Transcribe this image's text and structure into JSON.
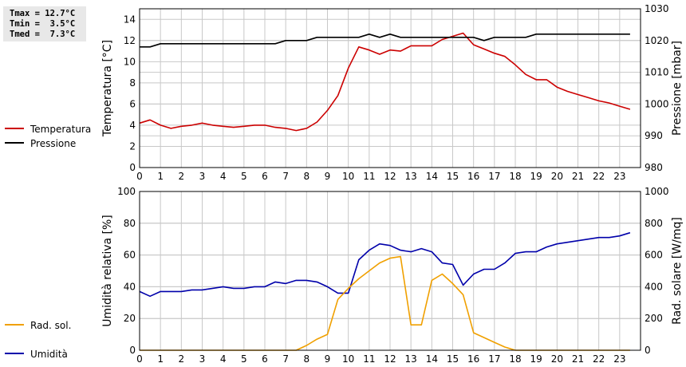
{
  "stats": {
    "tmax": "Tmax = 12.7°C",
    "tmin": "Tmin =  3.5°C",
    "tmed": "Tmed =  7.3°C"
  },
  "colors": {
    "temperature": "#cc0000",
    "pressure": "#000000",
    "humidity": "#0000aa",
    "solar": "#f0a000",
    "grid": "#c8c8c8"
  },
  "chart_data": [
    {
      "type": "line",
      "x_ticks": [
        "0",
        "1",
        "2",
        "3",
        "4",
        "5",
        "6",
        "7",
        "8",
        "9",
        "10",
        "11",
        "12",
        "13",
        "14",
        "15",
        "16",
        "17",
        "18",
        "19",
        "20",
        "21",
        "22",
        "23"
      ],
      "xlim": [
        0,
        24
      ],
      "ylabel_left": "Temperatura [°C]",
      "ylim_left": [
        0,
        15
      ],
      "yticks_left": [
        "0",
        "2",
        "4",
        "6",
        "8",
        "10",
        "12",
        "14"
      ],
      "ylabel_right": "Pressione [mbar]",
      "ylim_right": [
        980,
        1030
      ],
      "yticks_right": [
        "980",
        "990",
        "1000",
        "1010",
        "1020",
        "1030"
      ],
      "grid": true,
      "legend_position": "left",
      "series": [
        {
          "name": "Temperatura",
          "axis": "left",
          "x": [
            0,
            0.5,
            1,
            1.5,
            2,
            2.5,
            3,
            3.5,
            4,
            4.5,
            5,
            5.5,
            6,
            6.5,
            7,
            7.5,
            8,
            8.5,
            9,
            9.5,
            10,
            10.5,
            11,
            11.5,
            12,
            12.5,
            13,
            13.5,
            14,
            14.5,
            15,
            15.5,
            16,
            16.5,
            17,
            17.5,
            18,
            18.5,
            19,
            19.5,
            20,
            20.5,
            21,
            21.5,
            22,
            22.5,
            23,
            23.5
          ],
          "values": [
            4.2,
            4.5,
            4.0,
            3.7,
            3.9,
            4.0,
            4.2,
            4.0,
            3.9,
            3.8,
            3.9,
            4.0,
            4.0,
            3.8,
            3.7,
            3.5,
            3.7,
            4.3,
            5.4,
            6.8,
            9.4,
            11.4,
            11.1,
            10.7,
            11.1,
            11.0,
            11.5,
            11.5,
            11.5,
            12.1,
            12.4,
            12.7,
            11.6,
            11.2,
            10.8,
            10.5,
            9.7,
            8.8,
            8.3,
            8.3,
            7.6,
            7.2,
            6.9,
            6.6,
            6.3,
            6.1,
            5.8,
            5.5
          ]
        },
        {
          "name": "Pressione",
          "axis": "right",
          "x": [
            0,
            0.5,
            1,
            1.5,
            2,
            2.5,
            3,
            3.5,
            4,
            4.5,
            5,
            5.5,
            6,
            6.5,
            7,
            7.5,
            8,
            8.5,
            9,
            9.5,
            10,
            10.5,
            11,
            11.5,
            12,
            12.5,
            13,
            13.5,
            14,
            14.5,
            15,
            15.5,
            16,
            16.5,
            17,
            17.5,
            18,
            18.5,
            19,
            19.5,
            20,
            20.5,
            21,
            21.5,
            22,
            22.5,
            23,
            23.5
          ],
          "values": [
            1018,
            1018,
            1019,
            1019,
            1019,
            1019,
            1019,
            1019,
            1019,
            1019,
            1019,
            1019,
            1019,
            1019,
            1020,
            1020,
            1020,
            1021,
            1021,
            1021,
            1021,
            1021,
            1022,
            1021,
            1022,
            1021,
            1021,
            1021,
            1021,
            1021,
            1021,
            1021,
            1021,
            1020,
            1021,
            1021,
            1021,
            1021,
            1022,
            1022,
            1022,
            1022,
            1022,
            1022,
            1022,
            1022,
            1022,
            1022
          ]
        }
      ]
    },
    {
      "type": "line",
      "x_ticks": [
        "0",
        "1",
        "2",
        "3",
        "4",
        "5",
        "6",
        "7",
        "8",
        "9",
        "10",
        "11",
        "12",
        "13",
        "14",
        "15",
        "16",
        "17",
        "18",
        "19",
        "20",
        "21",
        "22",
        "23"
      ],
      "xlim": [
        0,
        24
      ],
      "ylabel_left": "Umidità relativa [%]",
      "ylim_left": [
        0,
        100
      ],
      "yticks_left": [
        "0",
        "20",
        "40",
        "60",
        "80",
        "100"
      ],
      "ylabel_right": "Rad. solare [W/mq]",
      "ylim_right": [
        0,
        1000
      ],
      "yticks_right": [
        "0",
        "200",
        "400",
        "600",
        "800",
        "1000"
      ],
      "grid": true,
      "legend_position": "left",
      "series": [
        {
          "name": "Umidità",
          "axis": "left",
          "x": [
            0,
            0.5,
            1,
            1.5,
            2,
            2.5,
            3,
            3.5,
            4,
            4.5,
            5,
            5.5,
            6,
            6.5,
            7,
            7.5,
            8,
            8.5,
            9,
            9.5,
            10,
            10.5,
            11,
            11.5,
            12,
            12.5,
            13,
            13.5,
            14,
            14.5,
            15,
            15.5,
            16,
            16.5,
            17,
            17.5,
            18,
            18.5,
            19,
            19.5,
            20,
            20.5,
            21,
            21.5,
            22,
            22.5,
            23,
            23.5
          ],
          "values": [
            37,
            34,
            37,
            37,
            37,
            38,
            38,
            39,
            40,
            39,
            39,
            40,
            40,
            43,
            42,
            44,
            44,
            43,
            40,
            36,
            36,
            57,
            63,
            67,
            66,
            63,
            62,
            64,
            62,
            55,
            54,
            41,
            48,
            51,
            51,
            55,
            61,
            62,
            62,
            65,
            67,
            68,
            69,
            70,
            71,
            71,
            72,
            74
          ]
        },
        {
          "name": "Rad. sol.",
          "axis": "right",
          "x": [
            0,
            0.5,
            1,
            1.5,
            2,
            2.5,
            3,
            3.5,
            4,
            4.5,
            5,
            5.5,
            6,
            6.5,
            7,
            7.5,
            8,
            8.5,
            9,
            9.5,
            10,
            10.5,
            11,
            11.5,
            12,
            12.5,
            13,
            13.5,
            14,
            14.5,
            15,
            15.5,
            16,
            16.5,
            17,
            17.5,
            18,
            18.5,
            19,
            19.5,
            20,
            20.5,
            21,
            21.5,
            22,
            22.5,
            23,
            23.5
          ],
          "values": [
            0,
            0,
            0,
            0,
            0,
            0,
            0,
            0,
            0,
            0,
            0,
            0,
            0,
            0,
            0,
            0,
            30,
            70,
            100,
            320,
            390,
            450,
            500,
            550,
            580,
            590,
            160,
            160,
            440,
            480,
            420,
            350,
            110,
            80,
            50,
            20,
            0,
            0,
            0,
            0,
            0,
            0,
            0,
            0,
            0,
            0,
            0,
            0
          ]
        }
      ]
    }
  ]
}
